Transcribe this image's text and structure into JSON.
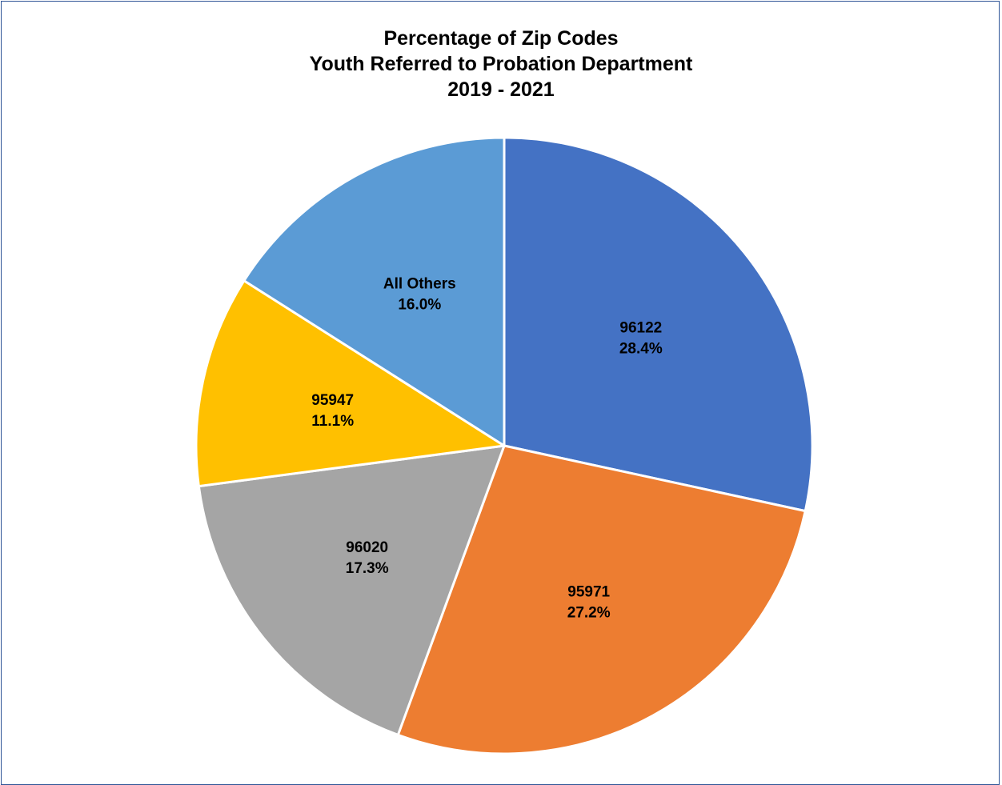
{
  "chart_data": {
    "type": "pie",
    "title_lines": [
      "Percentage of Zip Codes",
      "Youth Referred to Probation Department",
      "2019 - 2021"
    ],
    "slices": [
      {
        "label": "96122",
        "value": 28.4,
        "value_text": "28.4%",
        "color": "#4472c4"
      },
      {
        "label": "95971",
        "value": 27.2,
        "value_text": "27.2%",
        "color": "#ed7d31"
      },
      {
        "label": "96020",
        "value": 17.3,
        "value_text": "17.3%",
        "color": "#a5a5a5"
      },
      {
        "label": "95947",
        "value": 11.1,
        "value_text": "11.1%",
        "color": "#ffc000"
      },
      {
        "label": "All Others",
        "value": 16.0,
        "value_text": "16.0%",
        "color": "#5b9bd5"
      }
    ],
    "start_angle": "12 o'clock",
    "direction": "clockwise",
    "legend": "none",
    "data_labels": "inside"
  }
}
